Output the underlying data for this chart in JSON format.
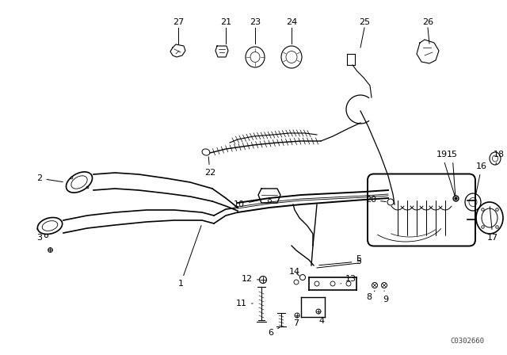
{
  "bg_color": "#ffffff",
  "line_color": "#000000",
  "fig_width": 6.4,
  "fig_height": 4.48,
  "dpi": 100,
  "watermark": "C0302660"
}
